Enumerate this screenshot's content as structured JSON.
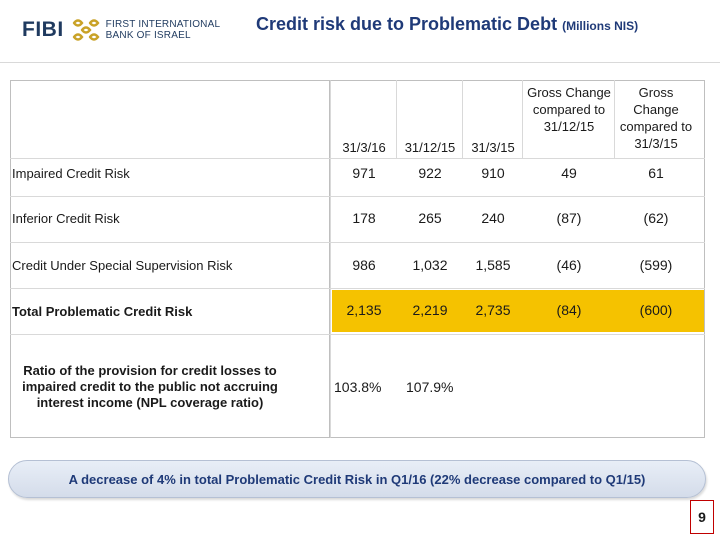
{
  "logo": {
    "brand": "FIBI",
    "line1": "FIRST INTERNATIONAL",
    "line2": "BANK OF ISRAEL",
    "mark_icon": "fibi-logo-mark-icon",
    "color": "#1f3a5f"
  },
  "title": {
    "main": "Credit risk due to Problematic Debt",
    "unit": "(Millions NIS)",
    "color": "#1f3a78"
  },
  "table": {
    "headers": [
      "31/3/16",
      "31/12/15",
      "31/3/15",
      "Gross Change compared to 31/12/15",
      "Gross Change compared to 31/3/15"
    ],
    "rows": [
      {
        "label": "Impaired Credit Risk",
        "values": [
          "971",
          "922",
          "910",
          "49",
          "61"
        ]
      },
      {
        "label": "Inferior Credit Risk",
        "values": [
          "178",
          "265",
          "240",
          "(87)",
          "(62)"
        ]
      },
      {
        "label": "Credit Under Special Supervision Risk",
        "values": [
          "986",
          "1,032",
          "1,585",
          "(46)",
          "(599)"
        ]
      },
      {
        "label": "Total Problematic Credit Risk",
        "values": [
          "2,135",
          "2,219",
          "2,735",
          "(84)",
          "(600)"
        ],
        "highlight_color": "#f5c200"
      }
    ],
    "ratio": {
      "label": "Ratio of the provision for credit losses to impaired credit to the public not accruing interest income (NPL coverage ratio)",
      "values": [
        "103.8%",
        "107.9%"
      ]
    }
  },
  "banner": {
    "text": "A decrease of 4% in total Problematic Credit Risk in Q1/16 (22% decrease compared to Q1/15)"
  },
  "page_number": "9"
}
